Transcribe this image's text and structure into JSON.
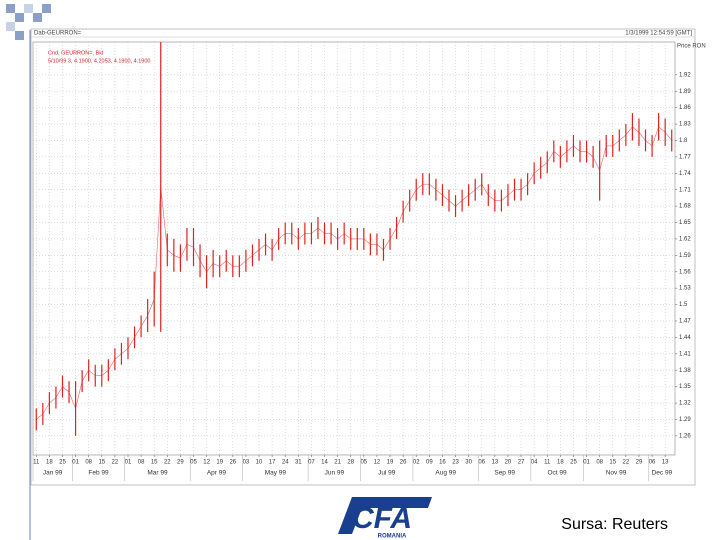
{
  "chart_data": {
    "type": "highlow",
    "header_left": "Dab-GEURRON=",
    "header_right": "1/3/1999 12:54:59 [GMT]",
    "y_axis_label": "Price RON",
    "legend_note": "5/10/99 3, 4.1900, 4.2053, 4.1900, 4.1900",
    "source": "Sursa: Reuters",
    "logo": "CFA",
    "logo_sub": "ROMANIA",
    "months": [
      "Jan 99",
      "Feb 99",
      "Mar 99",
      "Apr 99",
      "May 99",
      "Jun 99",
      "Jul 99",
      "Aug 99",
      "Sep 99",
      "Oct 99",
      "Nov 99",
      "Dec 99"
    ],
    "categories": [
      "11",
      null,
      "18",
      null,
      "25",
      null,
      "01",
      null,
      "08",
      null,
      "15",
      null,
      "22",
      null,
      "01",
      null,
      "08",
      null,
      "15",
      null,
      "22",
      null,
      "29",
      null,
      "05",
      null,
      "12",
      null,
      "19",
      null,
      "26",
      null,
      "03",
      null,
      "10",
      null,
      "17",
      null,
      "24",
      null,
      "31",
      null,
      "07",
      null,
      "14",
      null,
      "21",
      null,
      "28",
      null,
      "05",
      null,
      "12",
      null,
      "19",
      null,
      "26",
      null,
      "02",
      null,
      "09",
      null,
      "16",
      null,
      "23",
      null,
      "30",
      null,
      "06",
      null,
      "13",
      null,
      "20",
      null,
      "27",
      null,
      "04",
      null,
      "11",
      null,
      "18",
      null,
      "25",
      null,
      "01",
      null,
      "08",
      null,
      "15",
      null,
      "22",
      null,
      "29",
      null,
      "06",
      null,
      "13",
      null
    ],
    "series": [
      {
        "name": "Cnd, GEURRON=, Bid",
        "color": "#e02020",
        "high": [
          1.31,
          1.32,
          1.34,
          1.35,
          1.37,
          1.36,
          1.36,
          1.38,
          1.4,
          1.39,
          1.39,
          1.4,
          1.42,
          1.43,
          1.44,
          1.46,
          1.48,
          1.51,
          1.56,
          1.98,
          1.63,
          1.62,
          1.61,
          1.64,
          1.64,
          1.61,
          1.59,
          1.6,
          1.59,
          1.6,
          1.59,
          1.59,
          1.6,
          1.61,
          1.62,
          1.63,
          1.62,
          1.64,
          1.65,
          1.65,
          1.64,
          1.65,
          1.65,
          1.66,
          1.65,
          1.65,
          1.64,
          1.65,
          1.64,
          1.64,
          1.64,
          1.63,
          1.63,
          1.62,
          1.64,
          1.66,
          1.69,
          1.71,
          1.73,
          1.74,
          1.74,
          1.73,
          1.72,
          1.71,
          1.7,
          1.71,
          1.72,
          1.73,
          1.74,
          1.72,
          1.71,
          1.71,
          1.72,
          1.73,
          1.73,
          1.74,
          1.76,
          1.77,
          1.78,
          1.8,
          1.79,
          1.8,
          1.81,
          1.8,
          1.8,
          1.79,
          1.8,
          1.81,
          1.81,
          1.82,
          1.83,
          1.85,
          1.84,
          1.82,
          1.81,
          1.85,
          1.84,
          1.82
        ],
        "low": [
          1.27,
          1.28,
          1.3,
          1.31,
          1.33,
          1.32,
          1.26,
          1.34,
          1.36,
          1.35,
          1.35,
          1.36,
          1.38,
          1.39,
          1.4,
          1.42,
          1.44,
          1.45,
          1.46,
          1.45,
          1.57,
          1.56,
          1.56,
          1.58,
          1.57,
          1.55,
          1.53,
          1.55,
          1.55,
          1.56,
          1.55,
          1.55,
          1.56,
          1.57,
          1.58,
          1.59,
          1.58,
          1.6,
          1.61,
          1.61,
          1.6,
          1.61,
          1.61,
          1.62,
          1.61,
          1.61,
          1.6,
          1.61,
          1.6,
          1.6,
          1.6,
          1.59,
          1.59,
          1.58,
          1.6,
          1.62,
          1.65,
          1.67,
          1.69,
          1.7,
          1.7,
          1.69,
          1.68,
          1.67,
          1.66,
          1.67,
          1.68,
          1.69,
          1.7,
          1.68,
          1.67,
          1.67,
          1.68,
          1.69,
          1.69,
          1.7,
          1.72,
          1.73,
          1.74,
          1.76,
          1.75,
          1.76,
          1.77,
          1.76,
          1.76,
          1.75,
          1.69,
          1.77,
          1.77,
          1.78,
          1.79,
          1.8,
          1.79,
          1.78,
          1.77,
          1.8,
          1.79,
          1.78
        ]
      }
    ],
    "ylim": [
      1.225,
      1.98
    ],
    "yticks": [
      1.26,
      1.29,
      1.32,
      1.35,
      1.38,
      1.41,
      1.44,
      1.47,
      1.5,
      1.53,
      1.56,
      1.59,
      1.62,
      1.65,
      1.68,
      1.71,
      1.74,
      1.77,
      1.8,
      1.83,
      1.86,
      1.89,
      1.92
    ],
    "grid": true
  }
}
